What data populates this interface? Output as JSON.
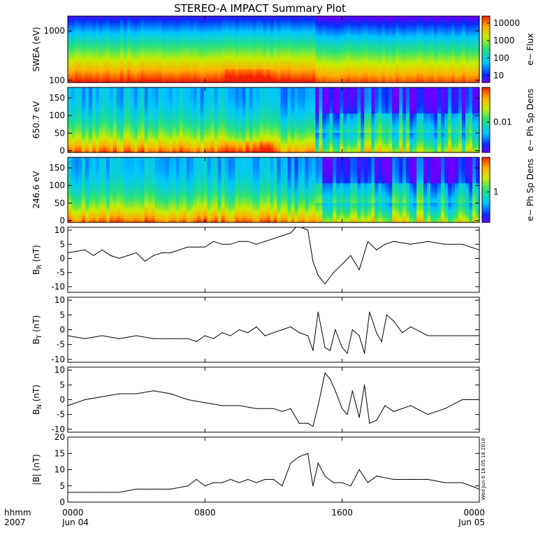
{
  "title": "STEREO-A IMPACT Summary Plot",
  "stamp": "Wed Jun  6 18:05:18 2010",
  "time_axis": {
    "year_label": "2007",
    "unit_label": "hhmm",
    "ticks": [
      {
        "h": 0,
        "top": "0000",
        "bottom": "Jun 04"
      },
      {
        "h": 8,
        "top": "0800",
        "bottom": ""
      },
      {
        "h": 16,
        "top": "1600",
        "bottom": ""
      },
      {
        "h": 24,
        "top": "0000",
        "bottom": "Jun 05"
      }
    ]
  },
  "colors": {
    "line": "#000000"
  },
  "chart_data": [
    {
      "type": "heatmap",
      "ylabel": "SWEA (eV)",
      "yscale": "log",
      "ylim": [
        90,
        2000
      ],
      "yticks": [
        "1000",
        "100"
      ],
      "colorbar": {
        "label": "e− Flux",
        "scale": "log",
        "ticks": [
          "10000",
          "1000",
          "100",
          "10"
        ]
      }
    },
    {
      "type": "heatmap",
      "ylabel": "650.7 eV",
      "ylim": [
        -5,
        180
      ],
      "yticks": [
        "150",
        "100",
        "50",
        "0"
      ],
      "colorbar": {
        "label": "e− Ph Sp Dens",
        "scale": "log",
        "ticks": [
          "0.01"
        ]
      }
    },
    {
      "type": "heatmap",
      "ylabel": "246.6 eV",
      "ylim": [
        -5,
        180
      ],
      "yticks": [
        "150",
        "100",
        "50",
        "0"
      ],
      "colorbar": {
        "label": "e− Ph Sp Dens",
        "scale": "log",
        "ticks": [
          "1"
        ]
      }
    },
    {
      "type": "line",
      "ylabel": "BR (nT)",
      "ylabel_main": "B",
      "ylabel_sub": "R",
      "ylabel_unit": " (nT)",
      "ylim": [
        -12,
        11
      ],
      "yticks": [
        "10",
        "5",
        "0",
        "-5",
        "-10"
      ],
      "x": [
        0,
        1,
        1.5,
        2,
        2.5,
        3,
        3.5,
        4,
        4.5,
        5,
        5.5,
        6,
        6.5,
        7,
        7.5,
        8,
        8.5,
        9,
        9.5,
        10,
        10.5,
        11,
        11.5,
        12,
        12.5,
        13,
        13.3,
        13.6,
        14,
        14.3,
        14.6,
        15,
        15.5,
        16,
        16.5,
        17,
        17.5,
        18,
        18.5,
        19,
        20,
        21,
        22,
        23,
        23.5,
        24
      ],
      "values": [
        2,
        3,
        1,
        3,
        1,
        0,
        1,
        2,
        -1,
        1,
        2,
        2,
        3,
        4,
        4,
        4,
        6,
        5,
        5,
        6,
        6,
        5,
        6,
        7,
        8,
        9,
        11,
        11,
        10,
        -1,
        -6,
        -9,
        -5,
        -2,
        1,
        -4,
        6,
        3,
        5,
        6,
        5,
        6,
        5,
        5,
        4,
        3
      ]
    },
    {
      "type": "line",
      "ylabel": "BT (nT)",
      "ylabel_main": "B",
      "ylabel_sub": "T",
      "ylabel_unit": " (nT)",
      "ylim": [
        -11,
        11
      ],
      "yticks": [
        "10",
        "5",
        "0",
        "-5",
        "-10"
      ],
      "x": [
        0,
        1,
        2,
        3,
        4,
        5,
        6,
        7,
        7.5,
        8,
        8.5,
        9,
        9.5,
        10,
        10.5,
        11,
        11.5,
        12,
        12.5,
        13,
        13.5,
        14,
        14.3,
        14.6,
        15,
        15.3,
        15.6,
        16,
        16.3,
        16.6,
        17,
        17.3,
        17.6,
        18,
        18.3,
        18.6,
        19,
        19.5,
        20,
        21,
        22,
        23,
        24
      ],
      "values": [
        -2,
        -3,
        -2,
        -3,
        -2,
        -3,
        -3,
        -3,
        -4,
        -2,
        -3,
        -1,
        -2,
        0,
        -1,
        1,
        -2,
        -1,
        0,
        1,
        -1,
        -2,
        -7,
        6,
        -6,
        -7,
        0,
        -6,
        -8,
        0,
        -2,
        -8,
        6,
        -1,
        -4,
        5,
        3,
        -1,
        1,
        -2,
        -2,
        -2,
        -2
      ]
    },
    {
      "type": "line",
      "ylabel": "BN (nT)",
      "ylabel_main": "B",
      "ylabel_sub": "N",
      "ylabel_unit": " (nT)",
      "ylim": [
        -11,
        11
      ],
      "yticks": [
        "10",
        "5",
        "0",
        "-5",
        "-10"
      ],
      "x": [
        0,
        1,
        2,
        3,
        4,
        5,
        6,
        7,
        8,
        9,
        10,
        11,
        12,
        12.5,
        13,
        13.5,
        14,
        14.3,
        14.6,
        15,
        15.3,
        15.6,
        16,
        16.3,
        16.6,
        17,
        17.3,
        17.6,
        18,
        18.5,
        19,
        20,
        21,
        22,
        23,
        24
      ],
      "values": [
        -2,
        0,
        1,
        2,
        2,
        3,
        2,
        0,
        -1,
        -2,
        -2,
        -3,
        -3,
        -4,
        -3,
        -8,
        -8,
        -9,
        -2,
        9,
        7,
        3,
        -3,
        -5,
        3,
        -6,
        5,
        -8,
        -7,
        -2,
        -4,
        -2,
        -5,
        -3,
        0,
        0
      ]
    },
    {
      "type": "line",
      "ylabel": "|B| (nT)",
      "ylabel_main": "|B|",
      "ylabel_sub": "",
      "ylabel_unit": " (nT)",
      "ylim": [
        0,
        20
      ],
      "yticks": [
        "20",
        "15",
        "10",
        "5",
        "0"
      ],
      "x": [
        0,
        1,
        2,
        3,
        4,
        5,
        6,
        7,
        7.5,
        8,
        8.5,
        9,
        9.5,
        10,
        10.5,
        11,
        11.5,
        12,
        12.5,
        13,
        13.5,
        14,
        14.3,
        14.6,
        15,
        15.5,
        16,
        16.5,
        17,
        17.5,
        18,
        19,
        20,
        21,
        22,
        23,
        24
      ],
      "values": [
        3,
        3,
        3,
        3,
        4,
        4,
        4,
        5,
        7,
        5,
        6,
        6,
        7,
        6,
        7,
        6,
        7,
        7,
        5,
        12,
        14,
        15,
        5,
        12,
        8,
        6,
        6,
        5,
        10,
        6,
        8,
        7,
        7,
        7,
        6,
        6,
        4
      ]
    }
  ]
}
